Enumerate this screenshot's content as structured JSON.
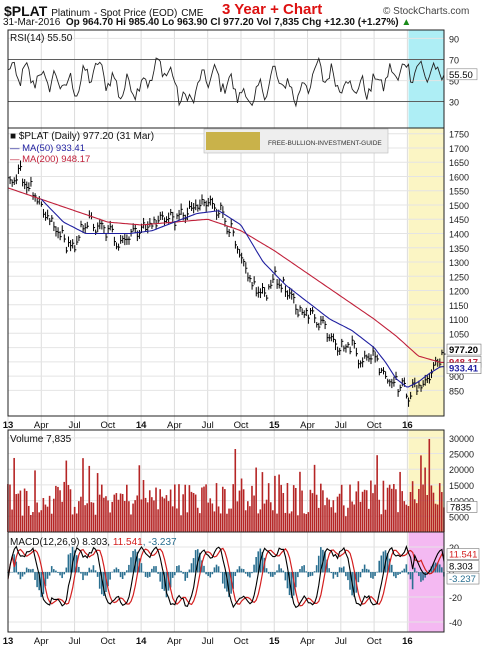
{
  "header": {
    "symbol": "$PLAT",
    "name": "Platinum",
    "desc": "- Spot Price (EOD)",
    "exchange": "CME",
    "chart_title": "3 Year + Chart",
    "site": "© StockCharts.com",
    "date": "31-Mar-2016",
    "quote": "Op 964.70  Hi 985.40  Lo 963.90  Cl 977.20  Vol 7,835  Chg +12.30 (+1.27%)",
    "quote_arrow": "▲"
  },
  "banner": {
    "text": "FREE-BULLION-INVESTMENT-GUIDE"
  },
  "colors": {
    "price": "#000000",
    "ma50": "#1f1fa0",
    "ma200": "#c0203a",
    "volume": "#b52525",
    "rsi": "#222222",
    "macd": "#000000",
    "signal": "#d41f1f",
    "hist": "#2a6f90",
    "highlight_yellow": "#fbf5c4",
    "highlight_cyan": "#aeeef5",
    "highlight_magenta": "#f4b9f2"
  },
  "chart_data": [
    {
      "type": "line",
      "panel": "rsi",
      "legend": "RSI(14) 55.50",
      "ylim": [
        5,
        98
      ],
      "yticks": [
        90,
        70,
        50,
        30
      ],
      "reference_lines": [
        70,
        30
      ],
      "current_label": "55.50",
      "anchors_x": [
        0,
        2,
        4,
        6,
        8,
        10,
        12,
        14,
        16,
        18,
        20,
        22,
        24,
        26,
        28,
        30,
        32,
        34,
        36,
        38,
        40
      ],
      "anchors_y": [
        58,
        54,
        50,
        44,
        62,
        42,
        46,
        66,
        28,
        56,
        46,
        30,
        55,
        36,
        60,
        48,
        42,
        52,
        62,
        58,
        55.5
      ]
    },
    {
      "type": "line",
      "panel": "price",
      "title": "$PLAT (Daily) 977.20 (31 Mar)",
      "xlabels": [
        "13",
        "Apr",
        "Jul",
        "Oct",
        "14",
        "Apr",
        "Jul",
        "Oct",
        "15",
        "Apr",
        "Jul",
        "Oct",
        "16"
      ],
      "x_positions_months": [
        0,
        3,
        6,
        9,
        12,
        15,
        18,
        21,
        24,
        27,
        30,
        33,
        36
      ],
      "ylim": [
        760,
        1770
      ],
      "yticks": [
        850,
        900,
        950,
        1000,
        1050,
        1100,
        1150,
        1200,
        1250,
        1300,
        1350,
        1400,
        1450,
        1500,
        1550,
        1600,
        1650,
        1700,
        1750
      ],
      "ytick_labels": [
        "850",
        "900",
        "",
        "1000",
        "1050",
        "1100",
        "1150",
        "1200",
        "1250",
        "1300",
        "1350",
        "1400",
        "1450",
        "1500",
        "1550",
        "1600",
        "1650",
        "1700",
        "1750"
      ],
      "series": [
        {
          "name": "$PLAT (Daily) 977.20",
          "current": "977.20",
          "x": [
            0,
            1,
            2,
            3,
            4,
            5,
            6,
            7,
            8,
            9,
            10,
            11,
            12,
            13,
            14,
            15,
            16,
            17,
            18,
            19,
            20,
            21,
            22,
            23,
            24,
            25,
            26,
            27,
            28,
            29,
            30,
            31,
            32,
            33,
            34,
            35,
            36,
            37,
            38,
            39
          ],
          "y": [
            1580,
            1610,
            1560,
            1480,
            1430,
            1380,
            1340,
            1450,
            1420,
            1410,
            1370,
            1400,
            1420,
            1430,
            1460,
            1450,
            1470,
            1490,
            1510,
            1490,
            1420,
            1300,
            1220,
            1180,
            1250,
            1200,
            1140,
            1120,
            1100,
            1050,
            1000,
            1010,
            950,
            980,
            900,
            880,
            840,
            860,
            900,
            977
          ]
        },
        {
          "name": "MA(50) 933.41",
          "current": "933.41",
          "x": [
            3,
            5,
            7,
            9,
            11,
            13,
            15,
            17,
            19,
            21,
            23,
            25,
            27,
            29,
            31,
            33,
            34,
            35,
            36,
            37,
            38,
            39
          ],
          "y": [
            1520,
            1440,
            1400,
            1400,
            1400,
            1410,
            1440,
            1470,
            1480,
            1430,
            1300,
            1220,
            1160,
            1100,
            1060,
            1000,
            950,
            890,
            860,
            880,
            910,
            933
          ]
        },
        {
          "name": "MA(200) 948.17",
          "current": "948.17",
          "x": [
            0,
            3,
            6,
            9,
            12,
            15,
            18,
            21,
            24,
            27,
            30,
            33,
            35,
            37,
            39
          ],
          "y": [
            1560,
            1520,
            1480,
            1440,
            1430,
            1440,
            1450,
            1410,
            1340,
            1260,
            1180,
            1100,
            1040,
            970,
            948
          ]
        }
      ]
    },
    {
      "type": "bar",
      "panel": "volume",
      "legend": "Volume 7,835",
      "ylim": [
        0,
        32500
      ],
      "yticks": [
        5000,
        10000,
        15000,
        20000,
        25000,
        30000
      ],
      "current_label": "7835"
    },
    {
      "type": "line",
      "panel": "macd",
      "legend": "MACD(12,26,9)",
      "macd_value": "8.303",
      "signal_value": "11.541",
      "hist_value": "-3.237",
      "ylim": [
        -48,
        32
      ],
      "yticks": [
        20,
        0,
        -20,
        -40
      ],
      "xlabels": [
        "13",
        "Apr",
        "Jul",
        "Oct",
        "14",
        "Apr",
        "Jul",
        "Oct",
        "15",
        "Apr",
        "Jul",
        "Oct",
        "16"
      ]
    }
  ]
}
